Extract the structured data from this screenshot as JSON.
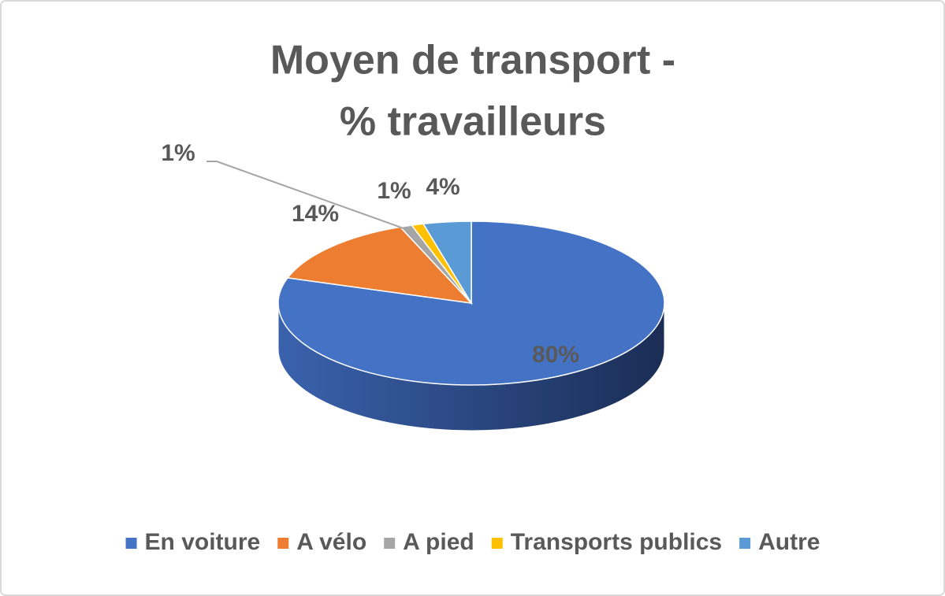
{
  "chart_data": {
    "type": "pie",
    "title": [
      "Moyen de transport -",
      "% travailleurs"
    ],
    "categories": [
      "En voiture",
      "A vélo",
      "A pied",
      "Transports publics",
      "Autre"
    ],
    "values": [
      80,
      14,
      1,
      1,
      4
    ],
    "value_labels": [
      "80%",
      "14%",
      "1%",
      "1%",
      "4%"
    ],
    "colors": [
      "#4472c4",
      "#ed7d31",
      "#a5a5a5",
      "#ffc000",
      "#5b9bd5"
    ],
    "legend": "bottom"
  }
}
